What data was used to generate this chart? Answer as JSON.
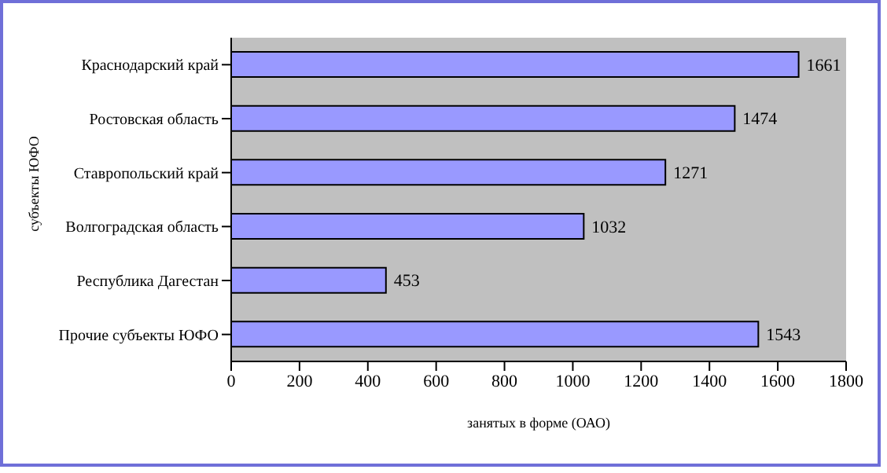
{
  "chart_data": {
    "type": "bar",
    "orientation": "horizontal",
    "categories": [
      "Краснодарский край",
      "Ростовская область",
      "Ставропольский край",
      "Волгоградская область",
      "Республика Дагестан",
      "Прочие субъекты ЮФО"
    ],
    "values": [
      1661,
      1474,
      1271,
      1032,
      453,
      1543
    ],
    "color": "#9999ff",
    "data_labels": true,
    "xlim": [
      0,
      1800
    ],
    "xticks": [
      0,
      200,
      400,
      600,
      800,
      1000,
      1200,
      1400,
      1600,
      1800
    ],
    "xlabel": "занятых в форме (ОАО)",
    "ylabel": "субъекты ЮФО",
    "grid": false
  }
}
